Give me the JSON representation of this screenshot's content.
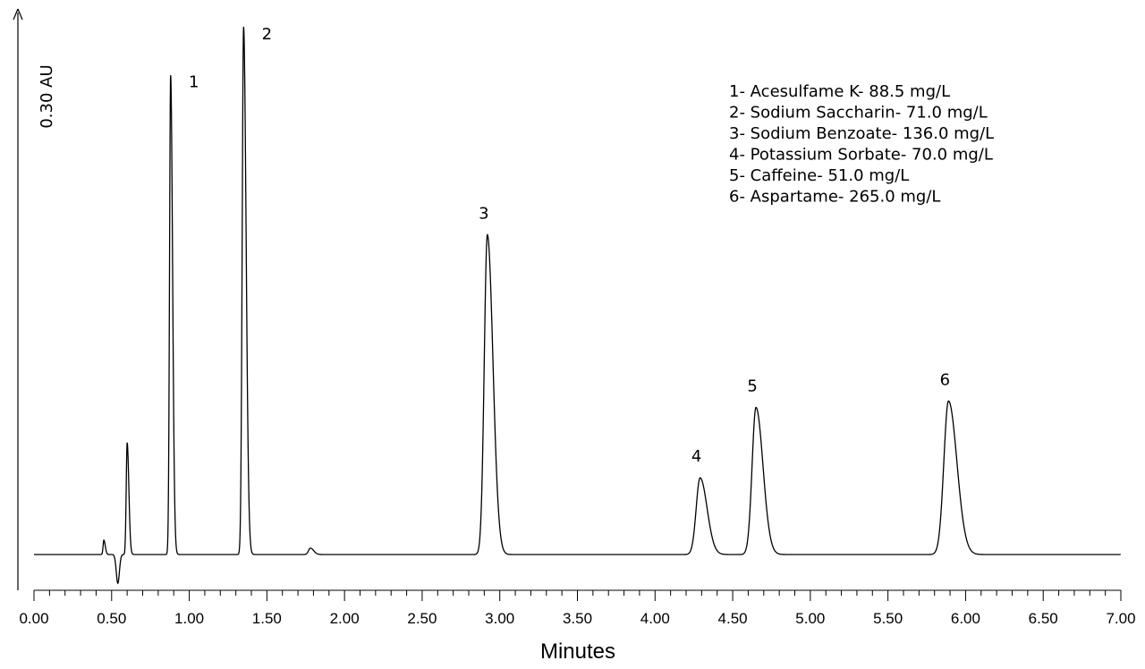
{
  "chart_data": {
    "type": "line",
    "xlabel": "Minutes",
    "ylabel": "0.30 AU",
    "xlim": [
      0,
      7
    ],
    "x_ticks": [
      "0.00",
      "0.50",
      "1.00",
      "1.50",
      "2.00",
      "2.50",
      "3.00",
      "3.50",
      "4.00",
      "4.50",
      "5.00",
      "5.50",
      "6.00",
      "6.50",
      "7.00"
    ],
    "baseline_au": 0.0,
    "system_peaks": [
      {
        "x": 0.45,
        "height": 0.009,
        "width": 0.005
      },
      {
        "x": 0.6,
        "height": 0.07,
        "width": 0.006
      },
      {
        "x": 1.78,
        "height": 0.004,
        "width": 0.012
      }
    ],
    "peaks": [
      {
        "label": "1",
        "x": 0.88,
        "height": 0.3,
        "width": 0.007
      },
      {
        "label": "2",
        "x": 1.35,
        "height": 0.33,
        "width": 0.009
      },
      {
        "label": "3",
        "x": 2.92,
        "height": 0.2,
        "width": 0.02
      },
      {
        "label": "4",
        "x": 4.29,
        "height": 0.048,
        "width": 0.025
      },
      {
        "label": "5",
        "x": 4.65,
        "height": 0.092,
        "width": 0.025
      },
      {
        "label": "6",
        "x": 5.89,
        "height": 0.096,
        "width": 0.03
      }
    ],
    "legend": [
      "1- Acesulfame K- 88.5 mg/L",
      "2- Sodium Saccharin- 71.0 mg/L",
      "3- Sodium Benzoate- 136.0 mg/L",
      "4- Potassium Sorbate- 70.0 mg/L",
      "5- Caffeine- 51.0 mg/L",
      "6- Aspartame- 265.0 mg/L"
    ],
    "legend_placement": "top-right",
    "grid": false
  }
}
